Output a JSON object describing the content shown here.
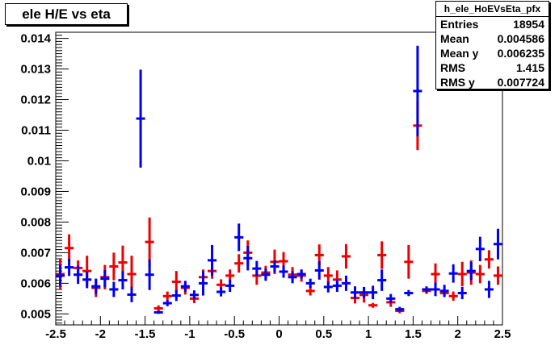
{
  "title": "ele H/E vs eta",
  "stats": {
    "name": "h_ele_HoEVsEta_pfx",
    "rows": [
      {
        "label": "Entries",
        "value": "18954"
      },
      {
        "label": "Mean",
        "value": "0.004586"
      },
      {
        "label": "Mean y",
        "value": "0.006235"
      },
      {
        "label": "RMS",
        "value": "1.415"
      },
      {
        "label": "RMS y",
        "value": "0.007724"
      }
    ]
  },
  "colors": {
    "series_blue": "#0000ee",
    "series_red": "#ee0000",
    "frame": "#000000"
  },
  "chart_data": {
    "type": "scatter",
    "title": "ele H/E vs eta",
    "xlabel": "",
    "ylabel": "",
    "xlim": [
      -2.5,
      2.5
    ],
    "ylim": [
      0.00464,
      0.0142
    ],
    "x_ticks": [
      "-2.5",
      "-2",
      "-1.5",
      "-1",
      "-0.5",
      "0",
      "0.5",
      "1",
      "1.5",
      "2",
      "2.5"
    ],
    "x_tick_values": [
      -2.5,
      -2,
      -1.5,
      -1,
      -0.5,
      0,
      0.5,
      1,
      1.5,
      2,
      2.5
    ],
    "y_ticks": [
      "0.005",
      "0.006",
      "0.007",
      "0.008",
      "0.009",
      "0.01",
      "0.011",
      "0.012",
      "0.013",
      "0.014"
    ],
    "y_tick_values": [
      0.005,
      0.006,
      0.007,
      0.008,
      0.009,
      0.01,
      0.011,
      0.012,
      0.013,
      0.014
    ],
    "bin_width": 0.1,
    "series": [
      {
        "color": "blue",
        "points": [
          {
            "x": -2.45,
            "y": 0.00625,
            "err": 0.00035
          },
          {
            "x": -2.35,
            "y": 0.00652,
            "err": 0.00028
          },
          {
            "x": -2.25,
            "y": 0.00628,
            "err": 0.0003
          },
          {
            "x": -2.15,
            "y": 0.00612,
            "err": 0.00028
          },
          {
            "x": -2.05,
            "y": 0.0059,
            "err": 0.00025
          },
          {
            "x": -1.95,
            "y": 0.00615,
            "err": 0.00028
          },
          {
            "x": -1.85,
            "y": 0.0058,
            "err": 0.00025
          },
          {
            "x": -1.75,
            "y": 0.0061,
            "err": 0.0003
          },
          {
            "x": -1.65,
            "y": 0.00563,
            "err": 0.00025
          },
          {
            "x": -1.55,
            "y": 0.01138,
            "err": 0.0016
          },
          {
            "x": -1.45,
            "y": 0.00628,
            "err": 0.0005
          },
          {
            "x": -1.35,
            "y": 0.00505,
            "err": 5e-05
          },
          {
            "x": -1.25,
            "y": 0.00535,
            "err": 0.0001
          },
          {
            "x": -1.15,
            "y": 0.0056,
            "err": 0.00018
          },
          {
            "x": -1.05,
            "y": 0.0059,
            "err": 0.00018
          },
          {
            "x": -0.95,
            "y": 0.00562,
            "err": 0.00015
          },
          {
            "x": -0.85,
            "y": 0.006,
            "err": 0.0004
          },
          {
            "x": -0.75,
            "y": 0.00675,
            "err": 0.0005
          },
          {
            "x": -0.65,
            "y": 0.00572,
            "err": 0.00015
          },
          {
            "x": -0.55,
            "y": 0.00592,
            "err": 0.0002
          },
          {
            "x": -0.45,
            "y": 0.0075,
            "err": 0.00045
          },
          {
            "x": -0.35,
            "y": 0.00682,
            "err": 0.0004
          },
          {
            "x": -0.25,
            "y": 0.00648,
            "err": 0.00025
          },
          {
            "x": -0.15,
            "y": 0.00628,
            "err": 0.0002
          },
          {
            "x": -0.05,
            "y": 0.00655,
            "err": 0.0002
          },
          {
            "x": 0.05,
            "y": 0.00638,
            "err": 0.0002
          },
          {
            "x": 0.15,
            "y": 0.0062,
            "err": 0.0002
          },
          {
            "x": 0.25,
            "y": 0.0063,
            "err": 0.00015
          },
          {
            "x": 0.35,
            "y": 0.006,
            "err": 0.00015
          },
          {
            "x": 0.45,
            "y": 0.00642,
            "err": 0.0003
          },
          {
            "x": 0.55,
            "y": 0.00588,
            "err": 0.00018
          },
          {
            "x": 0.65,
            "y": 0.00592,
            "err": 0.0002
          },
          {
            "x": 0.75,
            "y": 0.006,
            "err": 0.00025
          },
          {
            "x": 0.85,
            "y": 0.0057,
            "err": 0.0002
          },
          {
            "x": 0.95,
            "y": 0.0057,
            "err": 0.00018
          },
          {
            "x": 1.05,
            "y": 0.0057,
            "err": 0.00022
          },
          {
            "x": 1.15,
            "y": 0.0061,
            "err": 0.00035
          },
          {
            "x": 1.25,
            "y": 0.0055,
            "err": 0.00015
          },
          {
            "x": 1.35,
            "y": 0.00515,
            "err": 8e-05
          },
          {
            "x": 1.45,
            "y": 0.00568,
            "err": 0.0001
          },
          {
            "x": 1.55,
            "y": 0.01228,
            "err": 0.00148
          },
          {
            "x": 1.65,
            "y": 0.0058,
            "err": 0.0001
          },
          {
            "x": 1.75,
            "y": 0.0058,
            "err": 0.00022
          },
          {
            "x": 1.85,
            "y": 0.00575,
            "err": 0.0002
          },
          {
            "x": 1.95,
            "y": 0.00632,
            "err": 0.0003
          },
          {
            "x": 2.05,
            "y": 0.00568,
            "err": 0.0002
          },
          {
            "x": 2.15,
            "y": 0.0064,
            "err": 0.0003
          },
          {
            "x": 2.25,
            "y": 0.00712,
            "err": 0.0004
          },
          {
            "x": 2.35,
            "y": 0.0058,
            "err": 0.00028
          },
          {
            "x": 2.45,
            "y": 0.00728,
            "err": 0.0005
          }
        ]
      },
      {
        "color": "red",
        "points": [
          {
            "x": -2.45,
            "y": 0.0063,
            "err": 0.0005
          },
          {
            "x": -2.35,
            "y": 0.00715,
            "err": 0.00045
          },
          {
            "x": -2.25,
            "y": 0.0065,
            "err": 0.00025
          },
          {
            "x": -2.15,
            "y": 0.0064,
            "err": 0.0005
          },
          {
            "x": -2.05,
            "y": 0.00585,
            "err": 0.0003
          },
          {
            "x": -1.95,
            "y": 0.0062,
            "err": 0.0004
          },
          {
            "x": -1.85,
            "y": 0.00655,
            "err": 0.00045
          },
          {
            "x": -1.75,
            "y": 0.00668,
            "err": 0.00055
          },
          {
            "x": -1.65,
            "y": 0.0063,
            "err": 0.0006
          },
          {
            "x": -1.45,
            "y": 0.00735,
            "err": 0.0008
          },
          {
            "x": -1.35,
            "y": 0.00518,
            "err": 0.0001
          },
          {
            "x": -1.25,
            "y": 0.00558,
            "err": 0.00015
          },
          {
            "x": -1.15,
            "y": 0.00605,
            "err": 0.00035
          },
          {
            "x": -1.05,
            "y": 0.00585,
            "err": 0.00022
          },
          {
            "x": -0.95,
            "y": 0.0055,
            "err": 0.00015
          },
          {
            "x": -0.85,
            "y": 0.0062,
            "err": 0.00025
          },
          {
            "x": -0.75,
            "y": 0.0064,
            "err": 0.00025
          },
          {
            "x": -0.65,
            "y": 0.00595,
            "err": 0.00018
          },
          {
            "x": -0.55,
            "y": 0.00625,
            "err": 0.0002
          },
          {
            "x": -0.45,
            "y": 0.00665,
            "err": 0.0003
          },
          {
            "x": -0.35,
            "y": 0.007,
            "err": 0.0004
          },
          {
            "x": -0.25,
            "y": 0.00625,
            "err": 0.0003
          },
          {
            "x": -0.15,
            "y": 0.00635,
            "err": 0.00022
          },
          {
            "x": -0.05,
            "y": 0.0067,
            "err": 0.0004
          },
          {
            "x": 0.05,
            "y": 0.00672,
            "err": 0.0003
          },
          {
            "x": 0.15,
            "y": 0.00628,
            "err": 0.00025
          },
          {
            "x": 0.25,
            "y": 0.00625,
            "err": 0.0002
          },
          {
            "x": 0.35,
            "y": 0.00575,
            "err": 0.00015
          },
          {
            "x": 0.45,
            "y": 0.00692,
            "err": 0.00035
          },
          {
            "x": 0.55,
            "y": 0.00625,
            "err": 0.00028
          },
          {
            "x": 0.65,
            "y": 0.00612,
            "err": 0.0003
          },
          {
            "x": 0.75,
            "y": 0.00688,
            "err": 0.0004
          },
          {
            "x": 0.85,
            "y": 0.00552,
            "err": 0.00018
          },
          {
            "x": 0.95,
            "y": 0.00562,
            "err": 0.00025
          },
          {
            "x": 1.05,
            "y": 0.00528,
            "err": 8e-05
          },
          {
            "x": 1.15,
            "y": 0.00692,
            "err": 0.00045
          },
          {
            "x": 1.25,
            "y": 0.00538,
            "err": 0.00015
          },
          {
            "x": 1.35,
            "y": 0.0051,
            "err": 8e-05
          },
          {
            "x": 1.45,
            "y": 0.0067,
            "err": 0.00055
          },
          {
            "x": 1.55,
            "y": 0.01115,
            "err": 0.0008
          },
          {
            "x": 1.65,
            "y": 0.00575,
            "err": 0.0001
          },
          {
            "x": 1.75,
            "y": 0.0063,
            "err": 0.00035
          },
          {
            "x": 1.85,
            "y": 0.00568,
            "err": 0.00012
          },
          {
            "x": 1.95,
            "y": 0.00558,
            "err": 0.00015
          },
          {
            "x": 2.05,
            "y": 0.0063,
            "err": 0.0004
          },
          {
            "x": 2.15,
            "y": 0.00635,
            "err": 0.0004
          },
          {
            "x": 2.25,
            "y": 0.0063,
            "err": 0.0003
          },
          {
            "x": 2.35,
            "y": 0.00678,
            "err": 0.0003
          },
          {
            "x": 2.45,
            "y": 0.00625,
            "err": 0.0003
          }
        ]
      }
    ]
  }
}
